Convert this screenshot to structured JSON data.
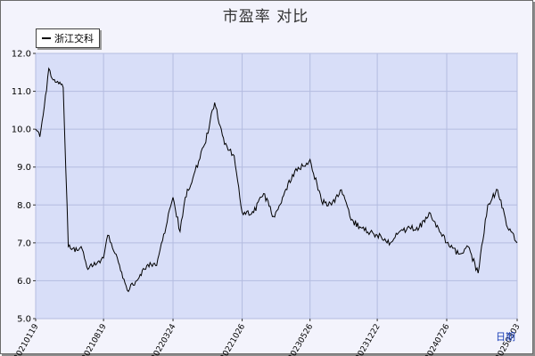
{
  "chart_data": {
    "type": "line",
    "title": "市盈率  对比",
    "legend": "浙江交科",
    "legend_position": "top-left",
    "ylim": [
      5.0,
      12.0
    ],
    "y_ticks": [
      "5.0",
      "6.0",
      "7.0",
      "8.0",
      "9.0",
      "10.0",
      "11.0",
      "12.0"
    ],
    "x_ticks": [
      "20210119",
      "20210819",
      "20220324",
      "20221026",
      "20230526",
      "20231222",
      "20240726",
      "20250303"
    ],
    "grid": true,
    "corner_label": "日期",
    "series": [
      {
        "name": "浙江交科",
        "color": "#000000",
        "x": [
          "20210119",
          "20210201",
          "20210215",
          "20210301",
          "20210315",
          "20210401",
          "20210415",
          "20210501",
          "20210515",
          "20210601",
          "20210610",
          "20210701",
          "20210801",
          "20210819",
          "20210901",
          "20211001",
          "20211101",
          "20211201",
          "20220101",
          "20220201",
          "20220324",
          "20220415",
          "20220501",
          "20220601",
          "20220701",
          "20220801",
          "20220901",
          "20221001",
          "20221026",
          "20221201",
          "20230101",
          "20230201",
          "20230301",
          "20230401",
          "20230526",
          "20230701",
          "20230801",
          "20230901",
          "20231001",
          "20231101",
          "20231222",
          "20240101",
          "20240201",
          "20240301",
          "20240401",
          "20240501",
          "20240601",
          "20240726",
          "20240901",
          "20241001",
          "20241101",
          "20241201",
          "20250101",
          "20250201",
          "20250303"
        ],
        "values": [
          10.0,
          9.8,
          10.6,
          11.6,
          11.3,
          11.2,
          11.1,
          6.9,
          6.85,
          6.8,
          6.9,
          6.3,
          6.5,
          6.6,
          7.2,
          6.6,
          5.75,
          6.0,
          6.4,
          6.4,
          8.2,
          7.3,
          8.2,
          8.9,
          9.6,
          10.7,
          9.6,
          9.3,
          7.8,
          7.8,
          8.3,
          7.7,
          8.2,
          8.8,
          9.2,
          8.1,
          8.0,
          8.4,
          7.6,
          7.4,
          7.2,
          7.2,
          7.0,
          7.3,
          7.4,
          7.4,
          7.8,
          7.0,
          6.7,
          6.9,
          6.2,
          8.0,
          8.4,
          7.4,
          7.0
        ]
      }
    ]
  }
}
